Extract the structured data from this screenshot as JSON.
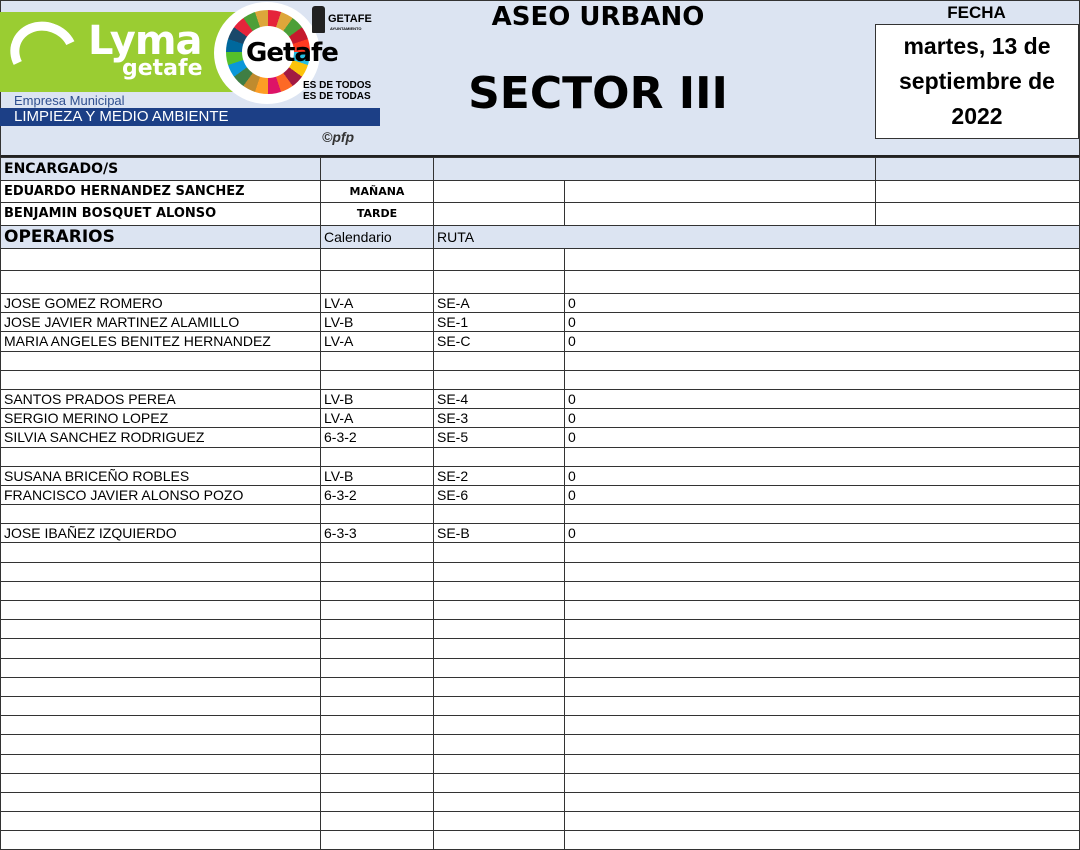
{
  "header": {
    "logo_lyma": "Lyma",
    "logo_lyma_sub": "getafe",
    "logo_getafe": "Getafe",
    "logo_getafe_small": "GETAFE",
    "logo_ayuntamiento": "AYUNTAMIENTO",
    "logo_slogan_1": "ES DE TODOS",
    "logo_slogan_2": "ES DE TODAS",
    "empresa": "Empresa Municipal",
    "limpieza": "LIMPIEZA Y MEDIO AMBIENTE",
    "copyright": "©pfp",
    "title": "ASEO URBANO",
    "sector": "SECTOR III",
    "fecha_label": "FECHA",
    "fecha_value": "martes, 13 de septiembre de 2022"
  },
  "encargados": {
    "label": "ENCARGADO/S",
    "rows": [
      {
        "name": "EDUARDO HERNANDEZ SANCHEZ",
        "turno": "MAÑANA"
      },
      {
        "name": "BENJAMIN BOSQUET ALONSO",
        "turno": "TARDE"
      }
    ]
  },
  "operarios": {
    "label": "OPERARIOS",
    "col_calendario": "Calendario",
    "col_ruta": "RUTA",
    "rows": [
      {
        "name": "JOSE GOMEZ ROMERO",
        "cal": "LV-A",
        "ruta": "SE-A",
        "val": "0"
      },
      {
        "name": "JOSE JAVIER MARTINEZ ALAMILLO",
        "cal": "LV-B",
        "ruta": "SE-1",
        "val": "0"
      },
      {
        "name": "MARIA ANGELES BENITEZ HERNANDEZ",
        "cal": "LV-A",
        "ruta": "SE-C",
        "val": "0"
      },
      {
        "name": "",
        "cal": "",
        "ruta": "",
        "val": ""
      },
      {
        "name": "",
        "cal": "",
        "ruta": "",
        "val": ""
      },
      {
        "name": "SANTOS PRADOS PEREA",
        "cal": "LV-B",
        "ruta": "SE-4",
        "val": "0"
      },
      {
        "name": "SERGIO MERINO LOPEZ",
        "cal": "LV-A",
        "ruta": "SE-3",
        "val": "0"
      },
      {
        "name": "SILVIA SANCHEZ RODRIGUEZ",
        "cal": "6-3-2",
        "ruta": "SE-5",
        "val": "0"
      },
      {
        "name": "",
        "cal": "",
        "ruta": "",
        "val": ""
      },
      {
        "name": "SUSANA BRICEÑO ROBLES",
        "cal": "LV-B",
        "ruta": "SE-2",
        "val": "0"
      },
      {
        "name": "FRANCISCO JAVIER ALONSO POZO",
        "cal": "6-3-2",
        "ruta": "SE-6",
        "val": "0"
      },
      {
        "name": "",
        "cal": "",
        "ruta": "",
        "val": ""
      },
      {
        "name": "JOSE IBAÑEZ IZQUIERDO",
        "cal": "6-3-3",
        "ruta": "SE-B",
        "val": "0"
      }
    ]
  },
  "colors": {
    "header_bg": "#dce4f2",
    "lyma_green": "#9acd32",
    "brand_blue": "#1c3f86"
  }
}
